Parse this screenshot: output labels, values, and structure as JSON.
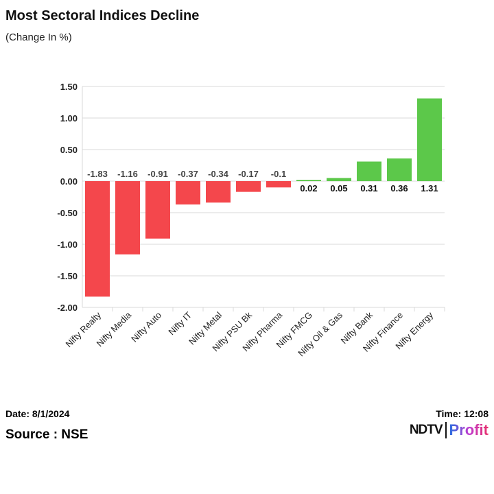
{
  "title": "Most Sectoral Indices Decline",
  "subtitle": "(Change In %)",
  "footer": {
    "date": "Date: 8/1/2024",
    "time": "Time: 12:08",
    "source": "Source : NSE",
    "logo": "NDTV Profit"
  },
  "chart_data": {
    "type": "bar",
    "title": "Most Sectoral Indices Decline",
    "categories": [
      "Nifty Realty",
      "Nifty Media",
      "Nifty Auto",
      "Nifty IT",
      "Nifty Metal",
      "Nifty PSU Bk",
      "Nifty Pharma",
      "Nifty FMCG",
      "Nifty Oil & Gas",
      "Nifty Bank",
      "Nifty Finance",
      "Nifty Energy"
    ],
    "values": [
      -1.83,
      -1.16,
      -0.91,
      -0.37,
      -0.34,
      -0.17,
      -0.1,
      0.02,
      0.05,
      0.31,
      0.36,
      1.31
    ],
    "yticks": [
      "1.50",
      "1.00",
      "0.50",
      "0.00",
      "-0.50",
      "-1.00",
      "-1.50",
      "-2.00"
    ],
    "ylim": [
      -2,
      1.5
    ],
    "grid": true,
    "colors": {
      "negative": "#f4474c",
      "positive": "#5cc84a"
    }
  }
}
